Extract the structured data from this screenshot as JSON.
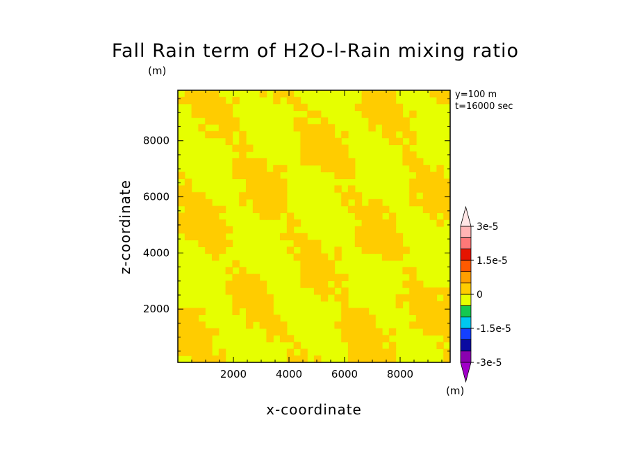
{
  "chart_data": {
    "type": "heatmap",
    "title": "Fall Rain term of H2O-l-Rain mixing ratio",
    "title_unit": "(m)",
    "xlabel": "x-coordinate",
    "ylabel": "z-coordinate",
    "annotations": [
      "y=100 m",
      "t=16000 sec"
    ],
    "xlim": [
      0,
      9800
    ],
    "ylim": [
      100,
      9800
    ],
    "x_ticks": [
      2000,
      4000,
      6000,
      8000
    ],
    "y_ticks": [
      2000,
      4000,
      6000,
      8000
    ],
    "x_tick_labels": [
      "2000",
      "4000",
      "6000",
      "8000"
    ],
    "y_tick_labels": [
      "2000",
      "4000",
      "6000",
      "8000"
    ],
    "colorbar": {
      "unit": "(m)",
      "levels": [
        -3e-05,
        -2.5e-05,
        -2e-05,
        -1.5e-05,
        -1e-05,
        -5e-06,
        0,
        5e-06,
        1e-05,
        1.5e-05,
        2e-05,
        2.5e-05,
        3e-05
      ],
      "tick_labels": [
        "3e-5",
        "1.5e-5",
        "0",
        "-1.5e-5",
        "-3e-5"
      ],
      "colors": [
        "#8a00b0",
        "#0a0aa0",
        "#1440ff",
        "#00c8f0",
        "#14c850",
        "#e6ff00",
        "#ffcc00",
        "#ff9f00",
        "#ff5a00",
        "#e61400",
        "#ff7878",
        "#ffb4b4"
      ],
      "extend_top_color": "#ffe6e6",
      "extend_bottom_color": "#a000c8"
    },
    "field_colors": {
      "zero_to_pos": "#ffcc00",
      "neg_to_zero": "#e6ff00"
    },
    "grid": false
  }
}
